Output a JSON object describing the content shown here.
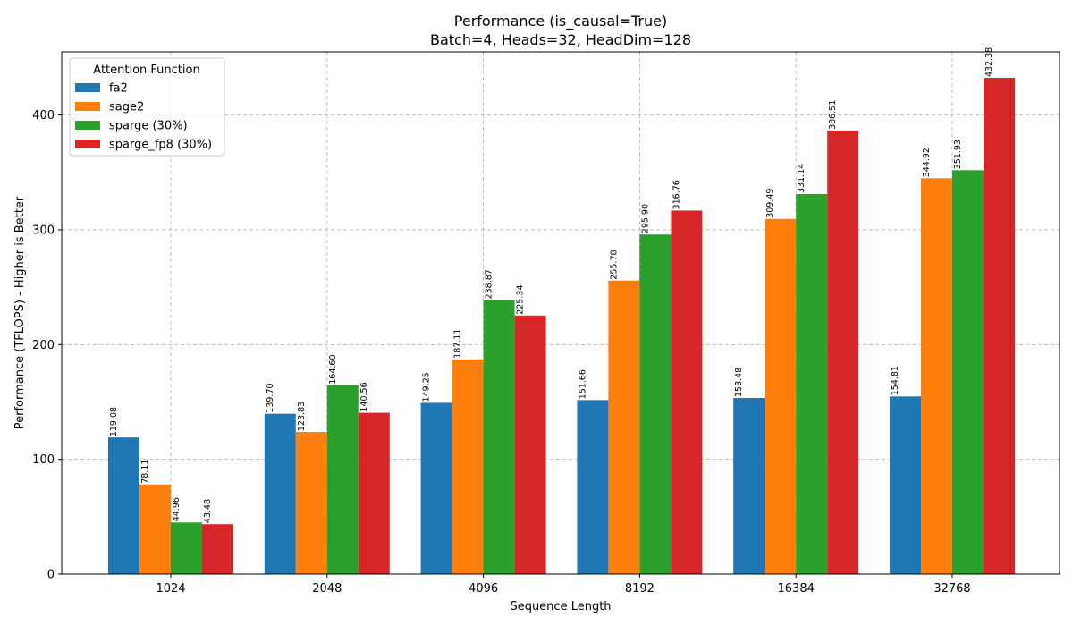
{
  "chart_data": {
    "type": "bar",
    "title": "Performance (is_causal=True)",
    "subtitle": "Batch=4, Heads=32, HeadDim=128",
    "xlabel": "Sequence Length",
    "ylabel": "Performance (TFLOPS) - Higher is Better",
    "categories": [
      "1024",
      "2048",
      "4096",
      "8192",
      "16384",
      "32768"
    ],
    "ylim": [
      0,
      455
    ],
    "yticks": [
      0,
      100,
      200,
      300,
      400
    ],
    "grid": true,
    "legend_title": "Attention Function",
    "legend_position": "top-left",
    "series": [
      {
        "name": "fa2",
        "color": "#1f77b4",
        "values": [
          119.08,
          139.7,
          149.25,
          151.66,
          153.48,
          154.81
        ]
      },
      {
        "name": "sage2",
        "color": "#ff7f0e",
        "values": [
          78.11,
          123.83,
          187.11,
          255.78,
          309.49,
          344.92
        ]
      },
      {
        "name": "sparge (30%)",
        "color": "#2ca02c",
        "values": [
          44.96,
          164.6,
          238.87,
          295.9,
          331.14,
          351.93
        ]
      },
      {
        "name": "sparge_fp8 (30%)",
        "color": "#d62728",
        "values": [
          43.48,
          140.56,
          225.34,
          316.76,
          386.51,
          432.38
        ]
      }
    ]
  }
}
